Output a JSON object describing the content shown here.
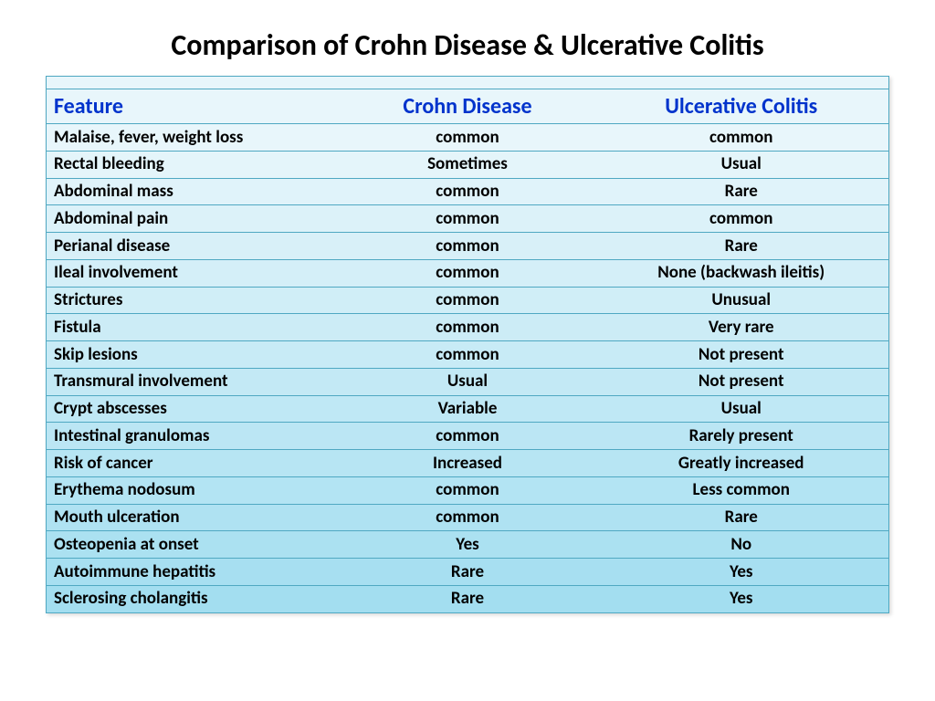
{
  "title": "Comparison of Crohn Disease & Ulcerative Colitis",
  "table": {
    "type": "table",
    "header_color": "#0033cc",
    "border_color": "#4fa8c2",
    "gradient_top": "#e8f6fb",
    "gradient_bottom": "#a3def0",
    "text_color": "#000000",
    "header_fontsize": 24,
    "body_fontsize": 19,
    "columns": [
      "Feature",
      "Crohn Disease",
      "Ulcerative Colitis"
    ],
    "col_align": [
      "left",
      "center",
      "center"
    ],
    "rows": [
      [
        "Malaise, fever, weight loss",
        "common",
        "common"
      ],
      [
        "Rectal bleeding",
        "Sometimes",
        "Usual"
      ],
      [
        "Abdominal mass",
        "common",
        "Rare"
      ],
      [
        "Abdominal pain",
        "common",
        "common"
      ],
      [
        "Perianal disease",
        "common",
        "Rare"
      ],
      [
        "Ileal involvement",
        "common",
        "None (backwash ileitis)"
      ],
      [
        "Strictures",
        "common",
        "Unusual"
      ],
      [
        "Fistula",
        "common",
        "Very rare"
      ],
      [
        "Skip lesions",
        "common",
        "Not present"
      ],
      [
        "Transmural involvement",
        "Usual",
        "Not present"
      ],
      [
        "Crypt abscesses",
        "Variable",
        "Usual"
      ],
      [
        "Intestinal granulomas",
        "common",
        "Rarely present"
      ],
      [
        "Risk of cancer",
        "Increased",
        "Greatly increased"
      ],
      [
        "Erythema nodosum",
        "common",
        "Less common"
      ],
      [
        "Mouth ulceration",
        "common",
        "Rare"
      ],
      [
        "Osteopenia at onset",
        "Yes",
        "No"
      ],
      [
        "Autoimmune hepatitis",
        "Rare",
        "Yes"
      ],
      [
        "Sclerosing cholangitis",
        "Rare",
        "Yes"
      ]
    ]
  }
}
